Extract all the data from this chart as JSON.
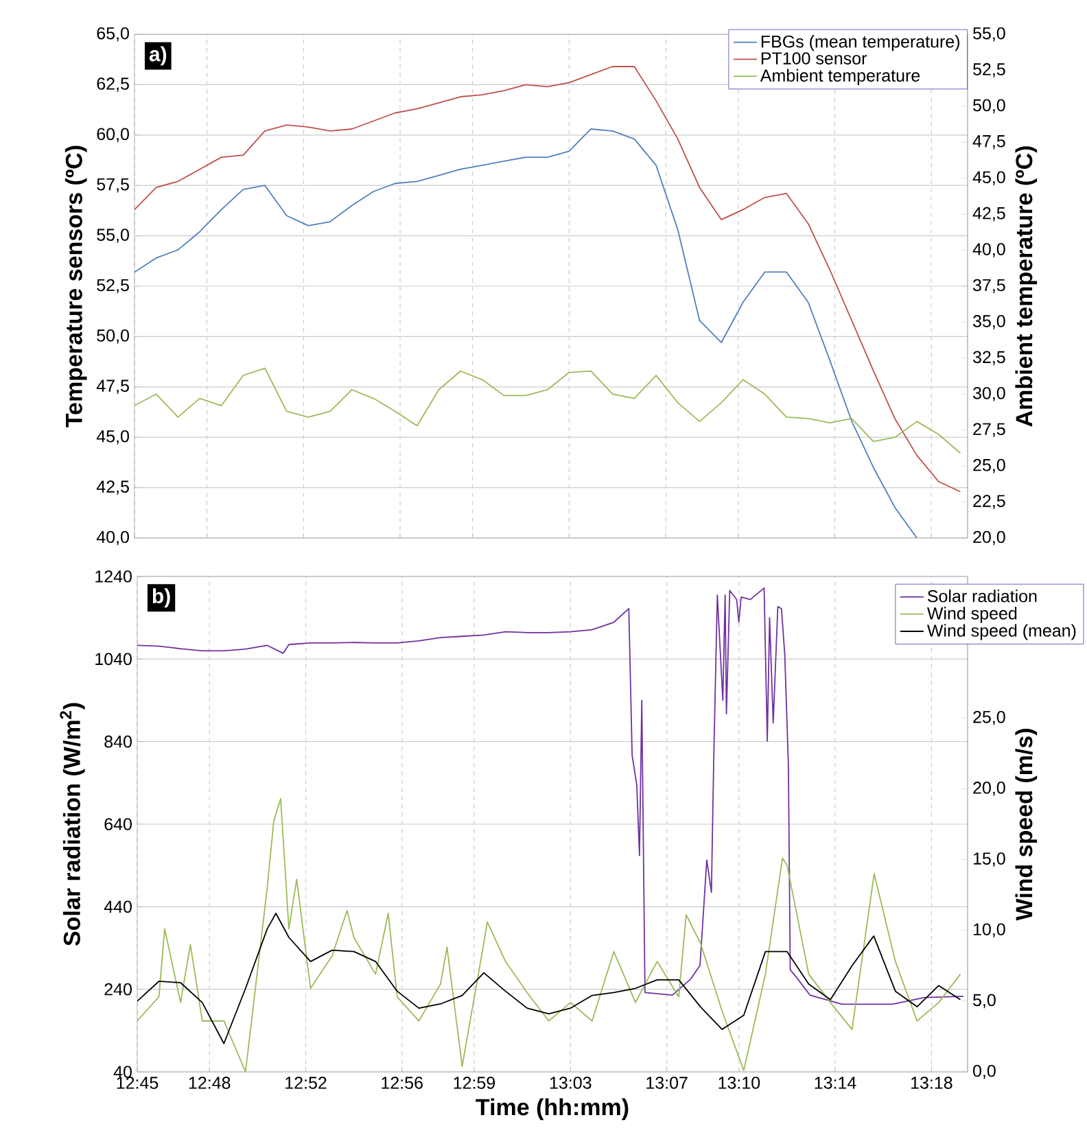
{
  "chart_data": [
    {
      "type": "line",
      "ylabel": "Temperature sensors (ºC)",
      "y2label": "Ambient temperature (ºC)",
      "annotations": [
        "a)"
      ],
      "x": [
        12.75,
        12.765,
        12.78,
        12.795,
        12.81,
        12.825,
        12.84,
        12.855,
        12.87,
        12.885,
        12.9,
        12.915,
        12.93,
        12.945,
        12.96,
        12.975,
        12.99,
        13.005,
        13.02,
        13.035,
        13.05,
        13.065,
        13.08,
        13.095,
        13.11,
        13.125,
        13.14,
        13.155,
        13.17,
        13.185,
        13.2,
        13.215,
        13.23,
        13.245,
        13.26,
        13.275,
        13.29,
        13.305,
        13.32
      ],
      "series": [
        {
          "name": "FBGs (mean temperature)",
          "color": "#4f81bd",
          "values": [
            53.2,
            53.9,
            54.3,
            55.2,
            56.3,
            57.3,
            57.5,
            56.0,
            55.5,
            55.7,
            56.5,
            57.2,
            57.6,
            57.7,
            58.0,
            58.3,
            58.5,
            58.7,
            58.9,
            58.9,
            59.2,
            60.3,
            60.2,
            59.8,
            58.5,
            55.3,
            50.8,
            49.7,
            51.7,
            53.2,
            53.2,
            51.7,
            48.8,
            45.8,
            43.5,
            41.5,
            40.0,
            null,
            null
          ]
        },
        {
          "name": "PT100 sensor",
          "color": "#c0504d",
          "values": [
            56.3,
            57.4,
            57.7,
            58.3,
            58.9,
            59.0,
            60.2,
            60.5,
            60.4,
            60.2,
            60.3,
            60.7,
            61.1,
            61.3,
            61.6,
            61.9,
            62.0,
            62.2,
            62.5,
            62.4,
            62.6,
            63.0,
            63.4,
            63.4,
            61.7,
            59.8,
            57.4,
            55.8,
            56.3,
            56.9,
            57.1,
            55.6,
            53.3,
            50.8,
            48.3,
            45.9,
            44.1,
            42.8,
            42.3
          ]
        },
        {
          "name": "Ambient temperature",
          "color": "#9bbb59",
          "axis": "y2",
          "values": [
            29.2,
            30.0,
            28.4,
            29.7,
            29.2,
            31.3,
            31.8,
            28.8,
            28.4,
            28.8,
            30.3,
            29.7,
            28.8,
            27.8,
            30.3,
            31.6,
            31.0,
            29.9,
            29.9,
            30.3,
            31.5,
            31.6,
            30.0,
            29.7,
            31.3,
            29.4,
            28.1,
            29.4,
            31.0,
            30.0,
            28.4,
            28.3,
            28.0,
            28.3,
            26.7,
            27.0,
            28.1,
            27.2,
            25.9
          ]
        }
      ],
      "xlim": [
        12.75,
        13.325
      ],
      "xticks": [
        {
          "value": 12.75,
          "label": null
        },
        {
          "value": 12.8,
          "label": null
        },
        {
          "value": 12.8667,
          "label": null
        },
        {
          "value": 12.9333,
          "label": null
        },
        {
          "value": 12.9833,
          "label": null
        },
        {
          "value": 13.05,
          "label": null
        },
        {
          "value": 13.1167,
          "label": null
        },
        {
          "value": 13.1667,
          "label": null
        },
        {
          "value": 13.2333,
          "label": null
        },
        {
          "value": 13.3,
          "label": null
        }
      ],
      "ylim": [
        40,
        65
      ],
      "yticks": [
        {
          "value": 40,
          "label": "40,0"
        },
        {
          "value": 42.5,
          "label": "42,5"
        },
        {
          "value": 45,
          "label": "45,0"
        },
        {
          "value": 47.5,
          "label": "47,5"
        },
        {
          "value": 50,
          "label": "50,0"
        },
        {
          "value": 52.5,
          "label": "52,5"
        },
        {
          "value": 55,
          "label": "55,0"
        },
        {
          "value": 57.5,
          "label": "57,5"
        },
        {
          "value": 60,
          "label": "60,0"
        },
        {
          "value": 62.5,
          "label": "62,5"
        },
        {
          "value": 65,
          "label": "65,0"
        }
      ],
      "y2lim": [
        20,
        55
      ],
      "y2ticks": [
        {
          "value": 20,
          "label": "20,0"
        },
        {
          "value": 22.5,
          "label": "22,5"
        },
        {
          "value": 25,
          "label": "25,0"
        },
        {
          "value": 27.5,
          "label": "27,5"
        },
        {
          "value": 30,
          "label": "30,0"
        },
        {
          "value": 32.5,
          "label": "32,5"
        },
        {
          "value": 35,
          "label": "35,0"
        },
        {
          "value": 37.5,
          "label": "37,5"
        },
        {
          "value": 40,
          "label": "40,0"
        },
        {
          "value": 42.5,
          "label": "42,5"
        },
        {
          "value": 45,
          "label": "45,0"
        },
        {
          "value": 47.5,
          "label": "47,5"
        },
        {
          "value": 50,
          "label": "50,0"
        },
        {
          "value": 52.5,
          "label": "52,5"
        },
        {
          "value": 55,
          "label": "55,0"
        }
      ],
      "tick_labels": "y",
      "grid": true,
      "legend": "top right"
    },
    {
      "type": "line",
      "xlabel": "Time (hh:mm)",
      "ylabel": "Solar radiation (W/m$^{2}$)",
      "y2label": "Wind speed (m/s)",
      "annotations": [
        "b)"
      ],
      "series": [
        {
          "name": "Solar radiation",
          "color": "#7030a0",
          "x": [
            12.75,
            12.765,
            12.78,
            12.795,
            12.81,
            12.825,
            12.84,
            12.851,
            12.855,
            12.87,
            12.885,
            12.9,
            12.915,
            12.93,
            12.945,
            12.96,
            12.975,
            12.99,
            13.005,
            13.02,
            13.035,
            13.05,
            13.065,
            13.08,
            13.0904,
            13.0927,
            13.0959,
            13.0978,
            13.0994,
            13.1016,
            13.1206,
            13.1333,
            13.1397,
            13.1444,
            13.1476,
            13.1492,
            13.1517,
            13.1555,
            13.1571,
            13.158,
            13.1603,
            13.1651,
            13.1666,
            13.1682,
            13.1746,
            13.1841,
            13.1863,
            13.1879,
            13.1904,
            13.1936,
            13.1961,
            13.1984,
            13.2009,
            13.2022,
            13.2063,
            13.2158,
            13.238,
            13.2729,
            13.2951,
            13.3221
          ],
          "values": [
            1073,
            1071,
            1065,
            1060,
            1060,
            1064,
            1073,
            1054,
            1075,
            1079,
            1079,
            1080,
            1079,
            1079,
            1084,
            1092,
            1095,
            1098,
            1106,
            1104,
            1104,
            1106,
            1111,
            1129,
            1162,
            807,
            735,
            564,
            940,
            232,
            226,
            265,
            298,
            553,
            475,
            796,
            1195,
            940,
            1195,
            907,
            1206,
            1184,
            1129,
            1190,
            1184,
            1212,
            841,
            1140,
            885,
            1167,
            1162,
            1051,
            785,
            287,
            270,
            226,
            204,
            204,
            220,
            223
          ]
        },
        {
          "name": "Wind speed",
          "color": "#9bbb59",
          "axis": "y2",
          "x": [
            12.75,
            12.765,
            12.769,
            12.78,
            12.7868,
            12.795,
            12.81,
            12.825,
            12.84,
            12.8445,
            12.8493,
            12.855,
            12.8604,
            12.87,
            12.885,
            12.8953,
            12.9,
            12.915,
            12.9238,
            12.93,
            12.945,
            12.96,
            12.9645,
            12.975,
            12.99,
            12.9924,
            13.005,
            13.02,
            13.035,
            13.05,
            13.065,
            13.08,
            13.095,
            13.11,
            13.125,
            13.1301,
            13.14,
            13.155,
            13.17,
            13.185,
            13.1968,
            13.2,
            13.215,
            13.23,
            13.245,
            13.2603,
            13.275,
            13.29,
            13.305,
            13.32
          ],
          "values": [
            3.6,
            5.3,
            10.1,
            4.9,
            9.0,
            3.6,
            3.6,
            0.0,
            13.0,
            17.7,
            19.3,
            10.1,
            13.6,
            5.9,
            8.2,
            11.4,
            9.5,
            6.9,
            11.2,
            5.3,
            3.6,
            6.2,
            8.8,
            0.4,
            9.1,
            10.6,
            7.8,
            5.6,
            3.6,
            4.9,
            3.6,
            8.5,
            4.9,
            7.8,
            5.3,
            11.1,
            9.1,
            4.3,
            0.1,
            6.9,
            15.1,
            14.6,
            6.9,
            4.9,
            3.0,
            14.0,
            7.8,
            3.6,
            4.9,
            6.9
          ]
        },
        {
          "name": "Wind speed (mean)",
          "color": "#000000",
          "axis": "y2",
          "x": [
            12.75,
            12.765,
            12.78,
            12.795,
            12.81,
            12.825,
            12.84,
            12.846,
            12.855,
            12.87,
            12.885,
            12.9,
            12.915,
            12.93,
            12.945,
            12.96,
            12.975,
            12.99,
            13.005,
            13.02,
            13.035,
            13.05,
            13.065,
            13.08,
            13.095,
            13.11,
            13.125,
            13.14,
            13.155,
            13.17,
            13.185,
            13.2,
            13.215,
            13.23,
            13.245,
            13.26,
            13.275,
            13.29,
            13.305,
            13.32
          ],
          "values": [
            5.0,
            6.4,
            6.3,
            4.9,
            2.0,
            5.9,
            10.1,
            11.2,
            9.5,
            7.8,
            8.6,
            8.5,
            7.8,
            5.7,
            4.5,
            4.8,
            5.4,
            7.0,
            5.7,
            4.5,
            4.1,
            4.5,
            5.4,
            5.6,
            5.9,
            6.5,
            6.5,
            4.6,
            3.0,
            4.0,
            8.5,
            8.5,
            6.2,
            5.1,
            7.5,
            9.6,
            5.7,
            4.6,
            6.1,
            5.1
          ]
        }
      ],
      "xlim": [
        12.75,
        13.325
      ],
      "xticks": [
        {
          "value": 12.75,
          "label": "12:45"
        },
        {
          "value": 12.8,
          "label": "12:48"
        },
        {
          "value": 12.8667,
          "label": "12:52"
        },
        {
          "value": 12.9333,
          "label": "12:56"
        },
        {
          "value": 12.9833,
          "label": "12:59"
        },
        {
          "value": 13.05,
          "label": "13:03"
        },
        {
          "value": 13.1167,
          "label": "13:07"
        },
        {
          "value": 13.1667,
          "label": "13:10"
        },
        {
          "value": 13.2333,
          "label": "13:14"
        },
        {
          "value": 13.3,
          "label": "13:18"
        }
      ],
      "ylim": [
        40,
        1240
      ],
      "yticks": [
        40,
        240,
        440,
        640,
        840,
        1040,
        1240
      ],
      "y2lim": [
        0,
        35
      ],
      "y2ticks": [
        {
          "value": 0,
          "label": "0,0"
        },
        {
          "value": 5,
          "label": "5,0"
        },
        {
          "value": 10,
          "label": "10,0"
        },
        {
          "value": 15,
          "label": "15,0"
        },
        {
          "value": 20,
          "label": "20,0"
        },
        {
          "value": 25,
          "label": "25,0"
        }
      ],
      "grid": true,
      "legend": "top right"
    }
  ]
}
